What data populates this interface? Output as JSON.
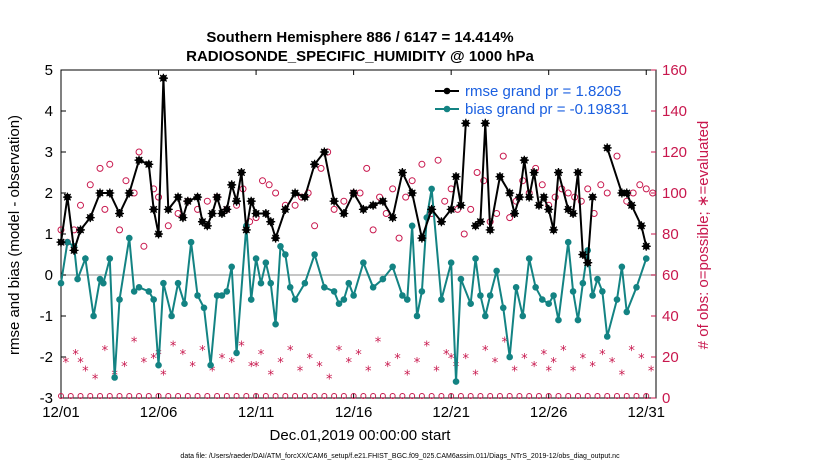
{
  "chart_data": {
    "type": "line",
    "title_line1": "Southern Hemisphere 886 / 6147 = 14.414%",
    "title_line2": "RADIOSONDE_SPECIFIC_HUMIDITY @ 1000 hPa",
    "xlabel": "Dec.01,2019 00:00:00 start",
    "ylabel": "rmse and bias (model - observation)",
    "ylabel_right": "# of obs: o=possible; ∗=evaluated",
    "footer": "data file: /Users/raeder/DAI/ATM_forcXX/CAM6_setup/f.e21.FHIST_BGC.f09_025.CAM6assim.011/Diags_NTrS_2019-12/obs_diag_output.nc",
    "xlim": [
      1,
      31.5
    ],
    "ylim": [
      -3,
      5
    ],
    "ylim_right": [
      0,
      160
    ],
    "x_ticks": [
      1,
      6,
      11,
      16,
      21,
      26,
      31
    ],
    "x_tick_labels": [
      "12/01",
      "12/06",
      "12/11",
      "12/16",
      "12/21",
      "12/26",
      "12/31"
    ],
    "y_ticks": [
      -3,
      -2,
      -1,
      0,
      1,
      2,
      3,
      4,
      5
    ],
    "y_tick_labels": [
      "-3",
      "-2",
      "-1",
      "0",
      "1",
      "2",
      "3",
      "4",
      "5"
    ],
    "y_ticks_right": [
      0,
      20,
      40,
      60,
      80,
      100,
      120,
      140,
      160
    ],
    "y_tick_labels_right": [
      "0",
      "20",
      "40",
      "60",
      "80",
      "100",
      "120",
      "140",
      "160"
    ],
    "legend": {
      "position": "top-right",
      "rmse_label": "rmse grand pr = 1.8205",
      "bias_label": "bias grand pr = -0.19831"
    },
    "colors": {
      "rmse": "#000000",
      "bias": "#138383",
      "obs": "#c8174d",
      "zero_line": "#b4b4b4",
      "legend_text": "#1a5fe0"
    },
    "series": [
      {
        "name": "rmse",
        "values": [
          0.8,
          1.9,
          0.6,
          1.1,
          1.4,
          2.0,
          2.0,
          1.5,
          2.0,
          2.8,
          2.7,
          1.6,
          1.0,
          4.8,
          1.6,
          1.9,
          1.4,
          1.8,
          1.9,
          1.3,
          1.2,
          1.5,
          1.9,
          1.5,
          1.6,
          2.2,
          1.8,
          2.5,
          1.1,
          1.8,
          1.5,
          1.5,
          1.3,
          0.9,
          1.6,
          2.0,
          1.9,
          2.7,
          3.0,
          1.8,
          1.5,
          2.0,
          1.6,
          1.7,
          1.8,
          1.4,
          2.5,
          2.0,
          0.9,
          1.6,
          1.3,
          1.6,
          2.4,
          1.7,
          3.7,
          null,
          1.2,
          1.3,
          3.7,
          1.1,
          2.4,
          2.0,
          1.5,
          1.9,
          2.8,
          1.9,
          2.5,
          1.7,
          1.9,
          1.6,
          1.1,
          2.5,
          1.6,
          1.5,
          2.5,
          0.5,
          0.3,
          1.9,
          null,
          3.1,
          2.0,
          2.0,
          1.7,
          1.2,
          0.7
        ],
        "x": [
          1.0,
          1.33,
          1.67,
          2.0,
          2.5,
          3.0,
          3.5,
          4.0,
          4.5,
          5.0,
          5.5,
          5.75,
          6.0,
          6.25,
          6.5,
          7.0,
          7.25,
          7.5,
          8.0,
          8.25,
          8.5,
          8.75,
          9.0,
          9.25,
          9.5,
          9.75,
          10.0,
          10.25,
          10.5,
          10.75,
          11.0,
          11.5,
          11.75,
          12.0,
          12.5,
          13.0,
          13.5,
          14.0,
          14.5,
          15.0,
          15.5,
          16.0,
          16.5,
          17.0,
          17.5,
          18.0,
          18.5,
          19.0,
          19.5,
          20.0,
          20.5,
          21.0,
          21.25,
          21.5,
          21.75,
          22.0,
          22.25,
          22.5,
          22.75,
          23.0,
          23.5,
          24.0,
          24.25,
          24.5,
          24.75,
          25.0,
          25.25,
          25.5,
          25.75,
          26.0,
          26.25,
          26.5,
          27.0,
          27.25,
          27.5,
          27.75,
          28.0,
          28.25,
          28.5,
          29.0,
          29.75,
          30.0,
          30.25,
          30.75,
          31.0
        ]
      },
      {
        "name": "bias",
        "values": [
          -0.2,
          0.8,
          0.7,
          -0.1,
          0.4,
          -1.0,
          -0.1,
          -0.2,
          0.4,
          -2.5,
          -0.6,
          0.9,
          -0.4,
          -0.3,
          -0.4,
          -0.6,
          -2.2,
          -0.2,
          -1.0,
          -0.2,
          -0.7,
          0.8,
          -0.5,
          -0.8,
          -2.2,
          -0.5,
          -0.5,
          -0.4,
          0.2,
          -1.9,
          1.2,
          -0.6,
          0.4,
          -0.2,
          0.3,
          -0.2,
          -1.2,
          0.7,
          0.5,
          -0.3,
          -0.6,
          -0.2,
          0.5,
          -0.3,
          -0.4,
          -0.7,
          -0.6,
          -0.2,
          -0.5,
          0.3,
          -0.3,
          -0.1,
          0.2,
          -0.5,
          -0.6,
          1.2,
          -1.0,
          -0.4,
          1.4,
          2.1,
          -0.6,
          0.3,
          -2.6,
          -0.1,
          -0.7,
          0.4,
          -0.5,
          -1.0,
          -0.5,
          0.1,
          -0.8,
          -2.0,
          -0.3,
          -1.0,
          0.4,
          -0.3,
          -0.6,
          -0.7,
          -0.5,
          -1.1,
          0.8,
          -0.4,
          -1.1,
          -0.2,
          0.6,
          -0.5,
          -0.1,
          -0.4,
          -1.5,
          -0.6,
          0.2,
          -0.9,
          -0.3,
          0.4
        ],
        "x": [
          1.0,
          1.33,
          1.67,
          1.85,
          2.25,
          2.67,
          3.0,
          3.17,
          3.5,
          3.75,
          4.0,
          4.5,
          4.75,
          5.0,
          5.5,
          5.75,
          6.0,
          6.25,
          6.67,
          7.0,
          7.33,
          7.67,
          8.0,
          8.33,
          8.67,
          9.0,
          9.25,
          9.5,
          9.75,
          10.0,
          10.5,
          10.75,
          11.0,
          11.25,
          11.5,
          11.75,
          12.0,
          12.25,
          12.5,
          12.75,
          13.0,
          13.5,
          14.0,
          14.5,
          15.0,
          15.25,
          15.5,
          15.75,
          16.0,
          16.5,
          17.0,
          17.5,
          18.0,
          18.5,
          18.75,
          19.0,
          19.25,
          19.5,
          19.75,
          20.0,
          20.5,
          21.0,
          21.25,
          21.5,
          22.0,
          22.25,
          22.5,
          22.75,
          23.0,
          23.33,
          23.67,
          24.0,
          24.33,
          24.67,
          25.0,
          25.33,
          25.67,
          26.0,
          26.25,
          26.5,
          27.0,
          27.25,
          27.5,
          27.75,
          28.0,
          28.25,
          28.5,
          28.75,
          29.0,
          29.5,
          29.75,
          30.0,
          30.5,
          31.0
        ]
      },
      {
        "name": "obs_possible",
        "axis": "right",
        "values": [
          82,
          76,
          82,
          94,
          104,
          112,
          92,
          114,
          82,
          106,
          100,
          120,
          74,
          102,
          98,
          84,
          90,
          96,
          92,
          96,
          98,
          92,
          94,
          102,
          86,
          88,
          106,
          104,
          100,
          94,
          94,
          98,
          100,
          84,
          112,
          120,
          92,
          96,
          100,
          100,
          112,
          82,
          98,
          90,
          102,
          78,
          98,
          106,
          114,
          90,
          116,
          96,
          102,
          92,
          80,
          92,
          110,
          106,
          86,
          90,
          118,
          88,
          96,
          106,
          100,
          112,
          104,
          94,
          98,
          102,
          100,
          98,
          96,
          102,
          90,
          104,
          100,
          118,
          96,
          100,
          104,
          102,
          100
        ],
        "x": [
          1.0,
          1.33,
          1.67,
          2.0,
          2.5,
          3.0,
          3.25,
          3.5,
          4.0,
          4.33,
          4.75,
          5.0,
          5.25,
          5.75,
          6.0,
          6.5,
          7.0,
          7.5,
          8.0,
          8.5,
          9.0,
          9.5,
          10.0,
          10.33,
          10.67,
          11.0,
          11.33,
          11.67,
          12.0,
          12.5,
          13.0,
          13.33,
          13.67,
          14.0,
          14.33,
          14.67,
          15.0,
          15.5,
          16.0,
          16.33,
          16.67,
          17.0,
          17.33,
          17.67,
          18.0,
          18.33,
          18.67,
          19.0,
          19.5,
          20.0,
          20.33,
          20.67,
          21.0,
          21.33,
          21.67,
          22.0,
          22.33,
          22.67,
          23.0,
          23.33,
          23.67,
          24.0,
          24.33,
          24.67,
          25.0,
          25.33,
          25.67,
          26.0,
          26.33,
          26.67,
          27.0,
          27.33,
          27.67,
          28.0,
          28.33,
          28.67,
          29.0,
          29.5,
          30.0,
          30.33,
          30.67,
          31.0,
          31.33
        ]
      },
      {
        "name": "obs_evaluated",
        "axis": "right",
        "values": [
          18,
          22,
          14,
          10,
          24,
          12,
          16,
          28,
          18,
          20,
          12,
          26,
          22,
          16,
          24,
          14,
          20,
          18,
          26,
          16,
          22,
          12,
          18,
          24,
          14,
          20,
          16,
          10,
          24,
          18,
          22,
          14,
          28,
          16,
          20,
          12,
          18,
          26,
          14,
          22,
          16,
          20,
          12,
          24,
          18,
          28,
          14,
          20,
          16,
          22,
          18,
          24,
          14,
          20,
          16,
          22,
          18,
          12,
          24,
          20,
          14,
          18,
          22,
          16,
          20,
          14
        ],
        "x": [
          1.25,
          1.75,
          2.25,
          2.75,
          3.25,
          3.75,
          4.25,
          4.75,
          5.25,
          5.75,
          6.25,
          6.75,
          7.25,
          7.75,
          8.25,
          8.75,
          9.25,
          9.75,
          10.25,
          10.75,
          11.25,
          11.75,
          12.25,
          12.75,
          13.25,
          13.75,
          14.25,
          14.75,
          15.25,
          15.75,
          16.25,
          16.75,
          17.25,
          17.75,
          18.25,
          18.75,
          19.25,
          19.75,
          20.25,
          20.75,
          21.25,
          21.75,
          22.25,
          22.75,
          23.25,
          23.75,
          24.25,
          24.75,
          25.25,
          25.75,
          26.25,
          26.75,
          27.25,
          27.75,
          28.25,
          28.75,
          29.25,
          29.75,
          30.25,
          30.75,
          31.25,
          2.0,
          6.0,
          11.0,
          21.0,
          26.0
        ]
      }
    ]
  }
}
